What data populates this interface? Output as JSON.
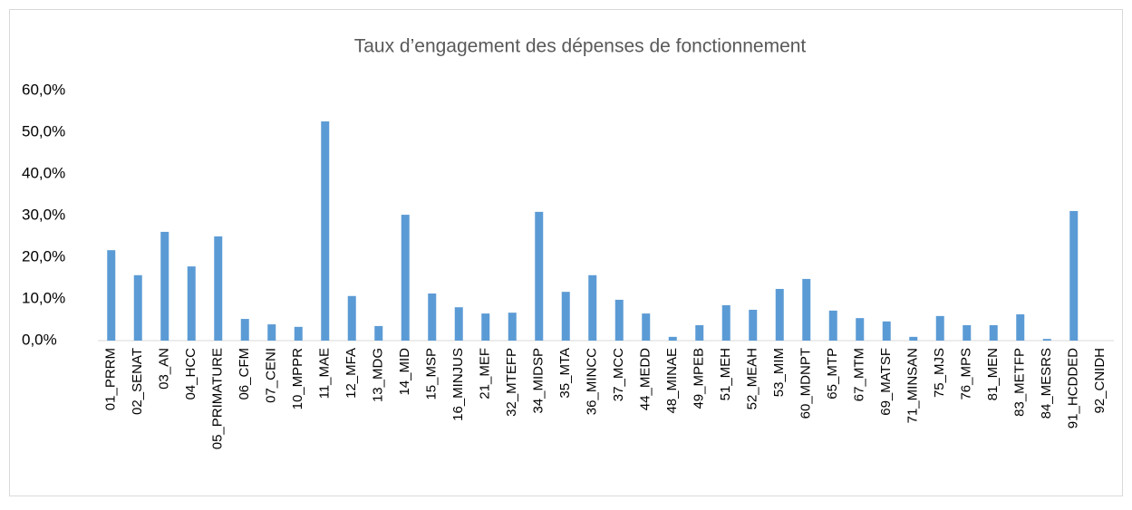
{
  "chart_data": {
    "type": "bar",
    "title": "Taux d’engagement des dépenses de fonctionnement",
    "categories": [
      "01_PRRM",
      "02_SENAT",
      "03_AN",
      "04_HCC",
      "05_PRIMATURE",
      "06_CFM",
      "07_CENI",
      "10_MPPR",
      "11_MAE",
      "12_MFA",
      "13_MDG",
      "14_MID",
      "15_MSP",
      "16_MINJUS",
      "21_MEF",
      "32_MTEFP",
      "34_MIDSP",
      "35_MTA",
      "36_MINCC",
      "37_MCC",
      "44_MEDD",
      "48_MINAE",
      "49_MPEB",
      "51_MEH",
      "52_MEAH",
      "53_MIM",
      "60_MDNPT",
      "65_MTP",
      "67_MTM",
      "69_MATSF",
      "71_MINSAN",
      "75_MJS",
      "76_MPS",
      "81_MEN",
      "83_METFP",
      "84_MESRS",
      "91_HCDDED",
      "92_CNIDH"
    ],
    "values": [
      21.7,
      15.7,
      26.1,
      17.8,
      25.0,
      5.2,
      3.9,
      3.3,
      52.6,
      10.7,
      3.5,
      30.2,
      11.3,
      8.0,
      6.5,
      6.7,
      30.9,
      11.7,
      15.7,
      9.8,
      6.5,
      0.9,
      3.7,
      8.5,
      7.4,
      12.4,
      14.8,
      7.2,
      5.4,
      4.6,
      0.9,
      5.9,
      3.7,
      3.7,
      6.3,
      0.4,
      31.1,
      0
    ],
    "color": "#5b9bd5",
    "ylim": [
      0,
      60
    ],
    "yticks": [
      {
        "value": 0,
        "label": "0,0%"
      },
      {
        "value": 10,
        "label": "10,0%"
      },
      {
        "value": 20,
        "label": "20,0%"
      },
      {
        "value": 30,
        "label": "30,0%"
      },
      {
        "value": 40,
        "label": "40,0%"
      },
      {
        "value": 50,
        "label": "50,0%"
      },
      {
        "value": 60,
        "label": "60,0%"
      }
    ],
    "grid": false
  }
}
